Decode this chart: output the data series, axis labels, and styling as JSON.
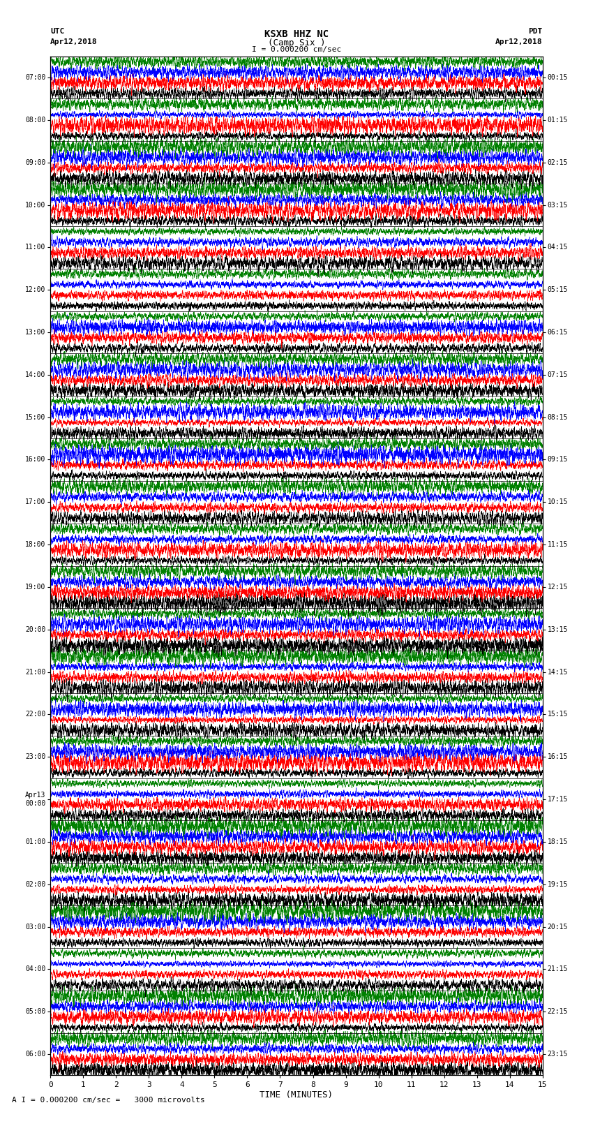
{
  "title": "KSXB HHZ NC",
  "subtitle": "(Camp Six )",
  "scale_label": "I = 0.000200 cm/sec",
  "bottom_label": "A I = 0.000200 cm/sec =   3000 microvolts",
  "xlabel": "TIME (MINUTES)",
  "left_times": [
    "07:00",
    "08:00",
    "09:00",
    "10:00",
    "11:00",
    "12:00",
    "13:00",
    "14:00",
    "15:00",
    "16:00",
    "17:00",
    "18:00",
    "19:00",
    "20:00",
    "21:00",
    "22:00",
    "23:00",
    "Apr13\n00:00",
    "01:00",
    "02:00",
    "03:00",
    "04:00",
    "05:00",
    "06:00"
  ],
  "right_times": [
    "00:15",
    "01:15",
    "02:15",
    "03:15",
    "04:15",
    "05:15",
    "06:15",
    "07:15",
    "08:15",
    "09:15",
    "10:15",
    "11:15",
    "12:15",
    "13:15",
    "14:15",
    "15:15",
    "16:15",
    "17:15",
    "18:15",
    "19:15",
    "20:15",
    "21:15",
    "22:15",
    "23:15"
  ],
  "n_rows": 24,
  "traces_per_row": 4,
  "colors": [
    "black",
    "red",
    "blue",
    "green"
  ],
  "fig_width": 8.5,
  "fig_height": 16.13,
  "bg_color": "white",
  "x_ticks": [
    0,
    1,
    2,
    3,
    4,
    5,
    6,
    7,
    8,
    9,
    10,
    11,
    12,
    13,
    14,
    15
  ]
}
